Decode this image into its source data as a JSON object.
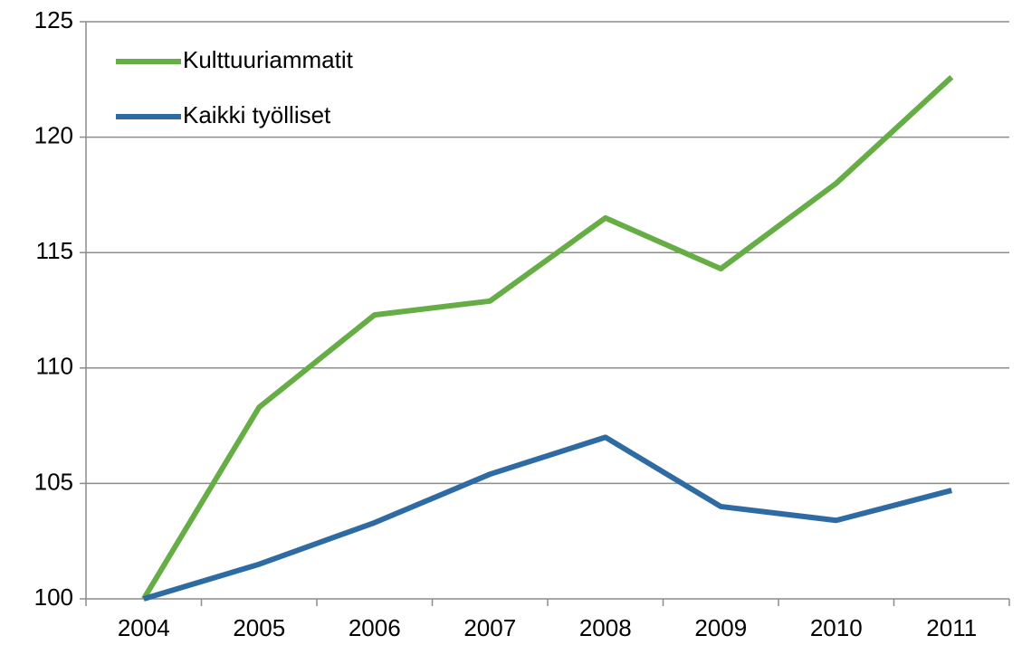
{
  "chart_data": {
    "type": "line",
    "categories": [
      "2004",
      "2005",
      "2006",
      "2007",
      "2008",
      "2009",
      "2010",
      "2011"
    ],
    "series": [
      {
        "name": "Kulttuuriammatit",
        "color": "#66ad45",
        "values": [
          100,
          108.3,
          112.3,
          112.9,
          116.5,
          114.3,
          118.0,
          122.6
        ]
      },
      {
        "name": "Kaikki työlliset",
        "color": "#2f6ba3",
        "values": [
          100,
          101.5,
          103.3,
          105.4,
          107.0,
          104.0,
          103.4,
          104.7
        ]
      }
    ],
    "ylim": [
      100,
      125
    ],
    "yticks": [
      100,
      105,
      110,
      115,
      120,
      125
    ],
    "grid": true,
    "legend": "top-left"
  }
}
